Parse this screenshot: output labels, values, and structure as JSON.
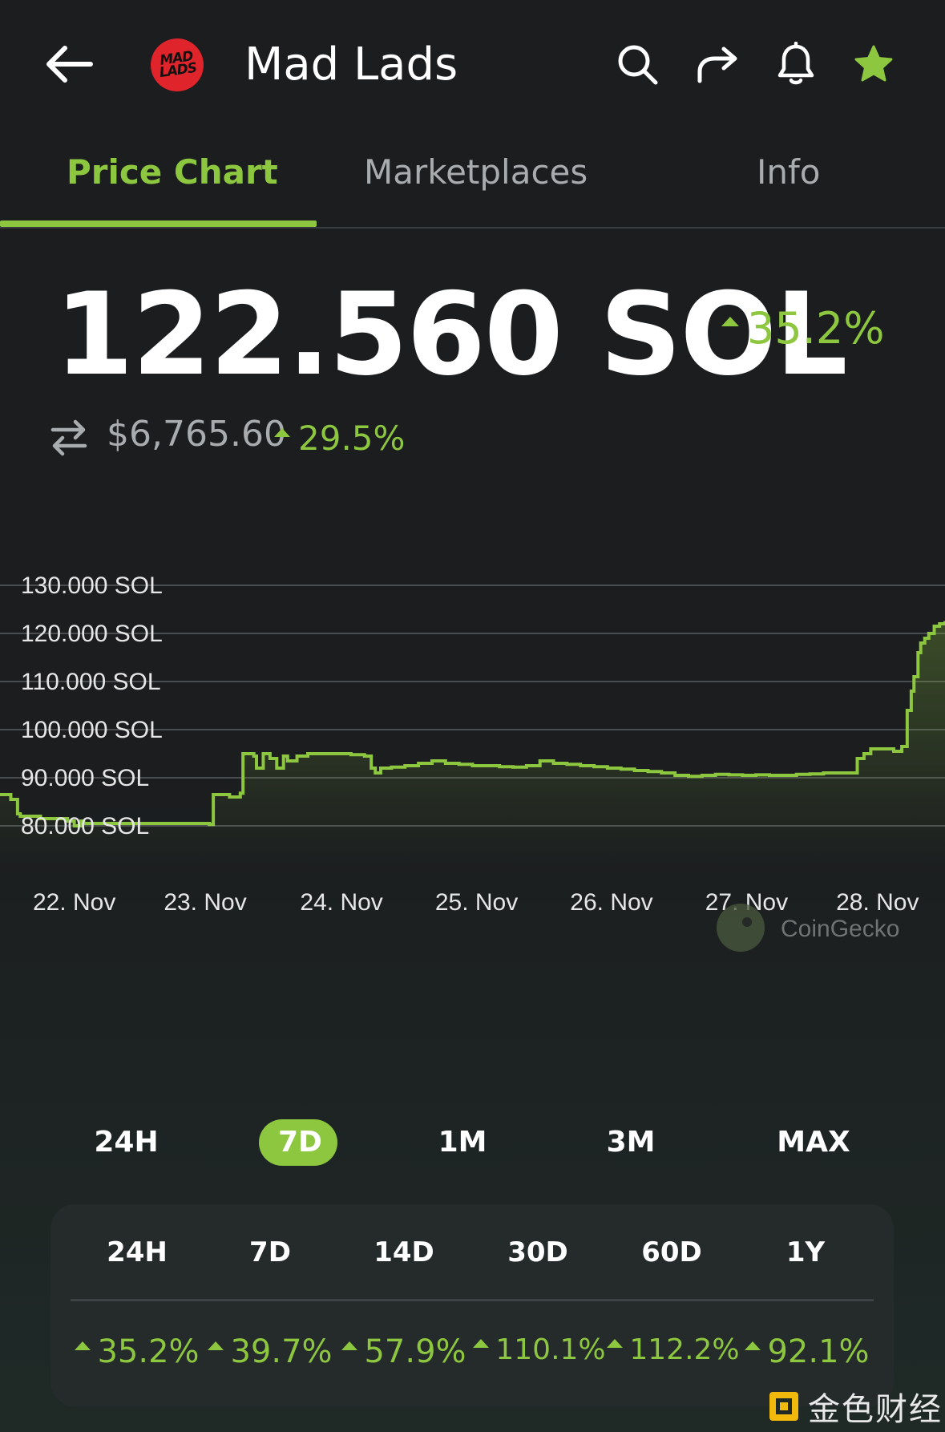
{
  "header": {
    "back_icon": "arrow-left-icon",
    "logo_text_line1": "MAD",
    "logo_text_line2": "LADS",
    "title": "Mad Lads",
    "actions": [
      "search-icon",
      "share-icon",
      "bell-icon",
      "star-icon"
    ],
    "accent": "#8dc63f"
  },
  "tabs": [
    {
      "label": "Price Chart",
      "active": true
    },
    {
      "label": "Marketplaces",
      "active": false
    },
    {
      "label": "Info",
      "active": false
    }
  ],
  "price": {
    "value": "122.560 SOL",
    "change": "35.2%",
    "usd_value": "$6,765.60",
    "usd_change": "29.5%"
  },
  "chart_data": {
    "type": "line",
    "watermark": "CoinGecko",
    "y_tick_labels": [
      "130.000 SOL",
      "120.000 SOL",
      "110.000 SOL",
      "100.000 SOL",
      "90.000 SOL",
      "80.000 SOL"
    ],
    "y_ticks": [
      130,
      120,
      110,
      100,
      90,
      80
    ],
    "ylim": [
      77,
      132
    ],
    "x_tick_labels": [
      "22. Nov",
      "23. Nov",
      "24. Nov",
      "25. Nov",
      "26. Nov",
      "27. Nov",
      "28. Nov"
    ],
    "x_ticks": [
      0.55,
      1.52,
      2.53,
      3.53,
      4.53,
      5.53,
      6.5
    ],
    "xlim": [
      0,
      7.0
    ],
    "grid": true,
    "line_color": "#8dc63f",
    "x": [
      0,
      0.08,
      0.13,
      0.15,
      0.3,
      0.5,
      0.55,
      0.6,
      0.62,
      0.8,
      1.0,
      1.2,
      1.4,
      1.55,
      1.58,
      1.7,
      1.78,
      1.8,
      1.88,
      1.9,
      1.95,
      2.0,
      2.05,
      2.1,
      2.13,
      2.2,
      2.28,
      2.35,
      2.45,
      2.6,
      2.7,
      2.75,
      2.78,
      2.82,
      2.9,
      3.0,
      3.1,
      3.2,
      3.3,
      3.4,
      3.5,
      3.6,
      3.7,
      3.8,
      3.9,
      4.0,
      4.1,
      4.2,
      4.3,
      4.4,
      4.5,
      4.6,
      4.7,
      4.8,
      4.9,
      5.0,
      5.1,
      5.2,
      5.3,
      5.4,
      5.5,
      5.6,
      5.7,
      5.8,
      5.9,
      6.0,
      6.1,
      6.2,
      6.3,
      6.35,
      6.4,
      6.45,
      6.55,
      6.62,
      6.68,
      6.72,
      6.75,
      6.77,
      6.8,
      6.82,
      6.85,
      6.88,
      6.92,
      6.96,
      7.0
    ],
    "y": [
      86.5,
      85.5,
      82.5,
      82.0,
      81.5,
      81.0,
      80.0,
      81.0,
      80.5,
      80.5,
      80.5,
      80.5,
      80.5,
      80.3,
      86.5,
      86.0,
      86.8,
      95.0,
      94.5,
      92.0,
      95.0,
      94.0,
      92.0,
      94.5,
      93.5,
      94.5,
      95.0,
      95.0,
      95.0,
      94.8,
      94.5,
      92.0,
      91.0,
      92.0,
      92.2,
      92.5,
      93.0,
      93.5,
      93.0,
      92.8,
      92.5,
      92.5,
      92.3,
      92.2,
      92.5,
      93.5,
      93.0,
      92.8,
      92.5,
      92.3,
      92.0,
      91.8,
      91.5,
      91.3,
      91.0,
      90.5,
      90.3,
      90.5,
      90.7,
      90.6,
      90.5,
      90.6,
      90.5,
      90.5,
      90.7,
      90.8,
      91.0,
      91.0,
      91.0,
      94.0,
      95.0,
      96.0,
      96.0,
      95.5,
      96.5,
      104.0,
      108.0,
      111.0,
      116.0,
      118.0,
      119.0,
      120.0,
      121.5,
      122.0,
      122.56
    ]
  },
  "ranges": [
    {
      "label": "24H",
      "active": false
    },
    {
      "label": "7D",
      "active": true
    },
    {
      "label": "1M",
      "active": false
    },
    {
      "label": "3M",
      "active": false
    },
    {
      "label": "MAX",
      "active": false
    }
  ],
  "performance": {
    "headers": [
      "24H",
      "7D",
      "14D",
      "30D",
      "60D",
      "1Y"
    ],
    "values": [
      "35.2%",
      "39.7%",
      "57.9%",
      "110.1%",
      "112.2%",
      "92.1%"
    ]
  },
  "watermark": {
    "text": "金色财经"
  }
}
